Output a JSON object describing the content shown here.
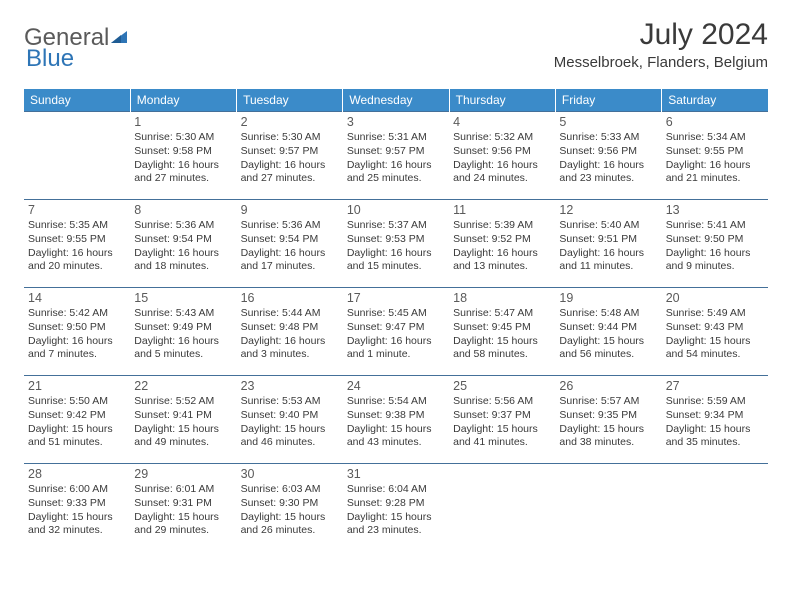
{
  "brand": {
    "part1": "General",
    "part2": "Blue"
  },
  "title": "July 2024",
  "location": "Messelbroek, Flanders, Belgium",
  "dayHeaders": [
    "Sunday",
    "Monday",
    "Tuesday",
    "Wednesday",
    "Thursday",
    "Friday",
    "Saturday"
  ],
  "colors": {
    "header_bg": "#3b8bc9",
    "header_fg": "#ffffff",
    "cell_border": "#447099",
    "text": "#3a3a3a",
    "logo_gray": "#5a5a5a",
    "logo_blue": "#2e75b6"
  },
  "weeks": [
    [
      null,
      {
        "n": "1",
        "sr": "Sunrise: 5:30 AM",
        "ss": "Sunset: 9:58 PM",
        "dl": "Daylight: 16 hours and 27 minutes."
      },
      {
        "n": "2",
        "sr": "Sunrise: 5:30 AM",
        "ss": "Sunset: 9:57 PM",
        "dl": "Daylight: 16 hours and 27 minutes."
      },
      {
        "n": "3",
        "sr": "Sunrise: 5:31 AM",
        "ss": "Sunset: 9:57 PM",
        "dl": "Daylight: 16 hours and 25 minutes."
      },
      {
        "n": "4",
        "sr": "Sunrise: 5:32 AM",
        "ss": "Sunset: 9:56 PM",
        "dl": "Daylight: 16 hours and 24 minutes."
      },
      {
        "n": "5",
        "sr": "Sunrise: 5:33 AM",
        "ss": "Sunset: 9:56 PM",
        "dl": "Daylight: 16 hours and 23 minutes."
      },
      {
        "n": "6",
        "sr": "Sunrise: 5:34 AM",
        "ss": "Sunset: 9:55 PM",
        "dl": "Daylight: 16 hours and 21 minutes."
      }
    ],
    [
      {
        "n": "7",
        "sr": "Sunrise: 5:35 AM",
        "ss": "Sunset: 9:55 PM",
        "dl": "Daylight: 16 hours and 20 minutes."
      },
      {
        "n": "8",
        "sr": "Sunrise: 5:36 AM",
        "ss": "Sunset: 9:54 PM",
        "dl": "Daylight: 16 hours and 18 minutes."
      },
      {
        "n": "9",
        "sr": "Sunrise: 5:36 AM",
        "ss": "Sunset: 9:54 PM",
        "dl": "Daylight: 16 hours and 17 minutes."
      },
      {
        "n": "10",
        "sr": "Sunrise: 5:37 AM",
        "ss": "Sunset: 9:53 PM",
        "dl": "Daylight: 16 hours and 15 minutes."
      },
      {
        "n": "11",
        "sr": "Sunrise: 5:39 AM",
        "ss": "Sunset: 9:52 PM",
        "dl": "Daylight: 16 hours and 13 minutes."
      },
      {
        "n": "12",
        "sr": "Sunrise: 5:40 AM",
        "ss": "Sunset: 9:51 PM",
        "dl": "Daylight: 16 hours and 11 minutes."
      },
      {
        "n": "13",
        "sr": "Sunrise: 5:41 AM",
        "ss": "Sunset: 9:50 PM",
        "dl": "Daylight: 16 hours and 9 minutes."
      }
    ],
    [
      {
        "n": "14",
        "sr": "Sunrise: 5:42 AM",
        "ss": "Sunset: 9:50 PM",
        "dl": "Daylight: 16 hours and 7 minutes."
      },
      {
        "n": "15",
        "sr": "Sunrise: 5:43 AM",
        "ss": "Sunset: 9:49 PM",
        "dl": "Daylight: 16 hours and 5 minutes."
      },
      {
        "n": "16",
        "sr": "Sunrise: 5:44 AM",
        "ss": "Sunset: 9:48 PM",
        "dl": "Daylight: 16 hours and 3 minutes."
      },
      {
        "n": "17",
        "sr": "Sunrise: 5:45 AM",
        "ss": "Sunset: 9:47 PM",
        "dl": "Daylight: 16 hours and 1 minute."
      },
      {
        "n": "18",
        "sr": "Sunrise: 5:47 AM",
        "ss": "Sunset: 9:45 PM",
        "dl": "Daylight: 15 hours and 58 minutes."
      },
      {
        "n": "19",
        "sr": "Sunrise: 5:48 AM",
        "ss": "Sunset: 9:44 PM",
        "dl": "Daylight: 15 hours and 56 minutes."
      },
      {
        "n": "20",
        "sr": "Sunrise: 5:49 AM",
        "ss": "Sunset: 9:43 PM",
        "dl": "Daylight: 15 hours and 54 minutes."
      }
    ],
    [
      {
        "n": "21",
        "sr": "Sunrise: 5:50 AM",
        "ss": "Sunset: 9:42 PM",
        "dl": "Daylight: 15 hours and 51 minutes."
      },
      {
        "n": "22",
        "sr": "Sunrise: 5:52 AM",
        "ss": "Sunset: 9:41 PM",
        "dl": "Daylight: 15 hours and 49 minutes."
      },
      {
        "n": "23",
        "sr": "Sunrise: 5:53 AM",
        "ss": "Sunset: 9:40 PM",
        "dl": "Daylight: 15 hours and 46 minutes."
      },
      {
        "n": "24",
        "sr": "Sunrise: 5:54 AM",
        "ss": "Sunset: 9:38 PM",
        "dl": "Daylight: 15 hours and 43 minutes."
      },
      {
        "n": "25",
        "sr": "Sunrise: 5:56 AM",
        "ss": "Sunset: 9:37 PM",
        "dl": "Daylight: 15 hours and 41 minutes."
      },
      {
        "n": "26",
        "sr": "Sunrise: 5:57 AM",
        "ss": "Sunset: 9:35 PM",
        "dl": "Daylight: 15 hours and 38 minutes."
      },
      {
        "n": "27",
        "sr": "Sunrise: 5:59 AM",
        "ss": "Sunset: 9:34 PM",
        "dl": "Daylight: 15 hours and 35 minutes."
      }
    ],
    [
      {
        "n": "28",
        "sr": "Sunrise: 6:00 AM",
        "ss": "Sunset: 9:33 PM",
        "dl": "Daylight: 15 hours and 32 minutes."
      },
      {
        "n": "29",
        "sr": "Sunrise: 6:01 AM",
        "ss": "Sunset: 9:31 PM",
        "dl": "Daylight: 15 hours and 29 minutes."
      },
      {
        "n": "30",
        "sr": "Sunrise: 6:03 AM",
        "ss": "Sunset: 9:30 PM",
        "dl": "Daylight: 15 hours and 26 minutes."
      },
      {
        "n": "31",
        "sr": "Sunrise: 6:04 AM",
        "ss": "Sunset: 9:28 PM",
        "dl": "Daylight: 15 hours and 23 minutes."
      },
      null,
      null,
      null
    ]
  ]
}
